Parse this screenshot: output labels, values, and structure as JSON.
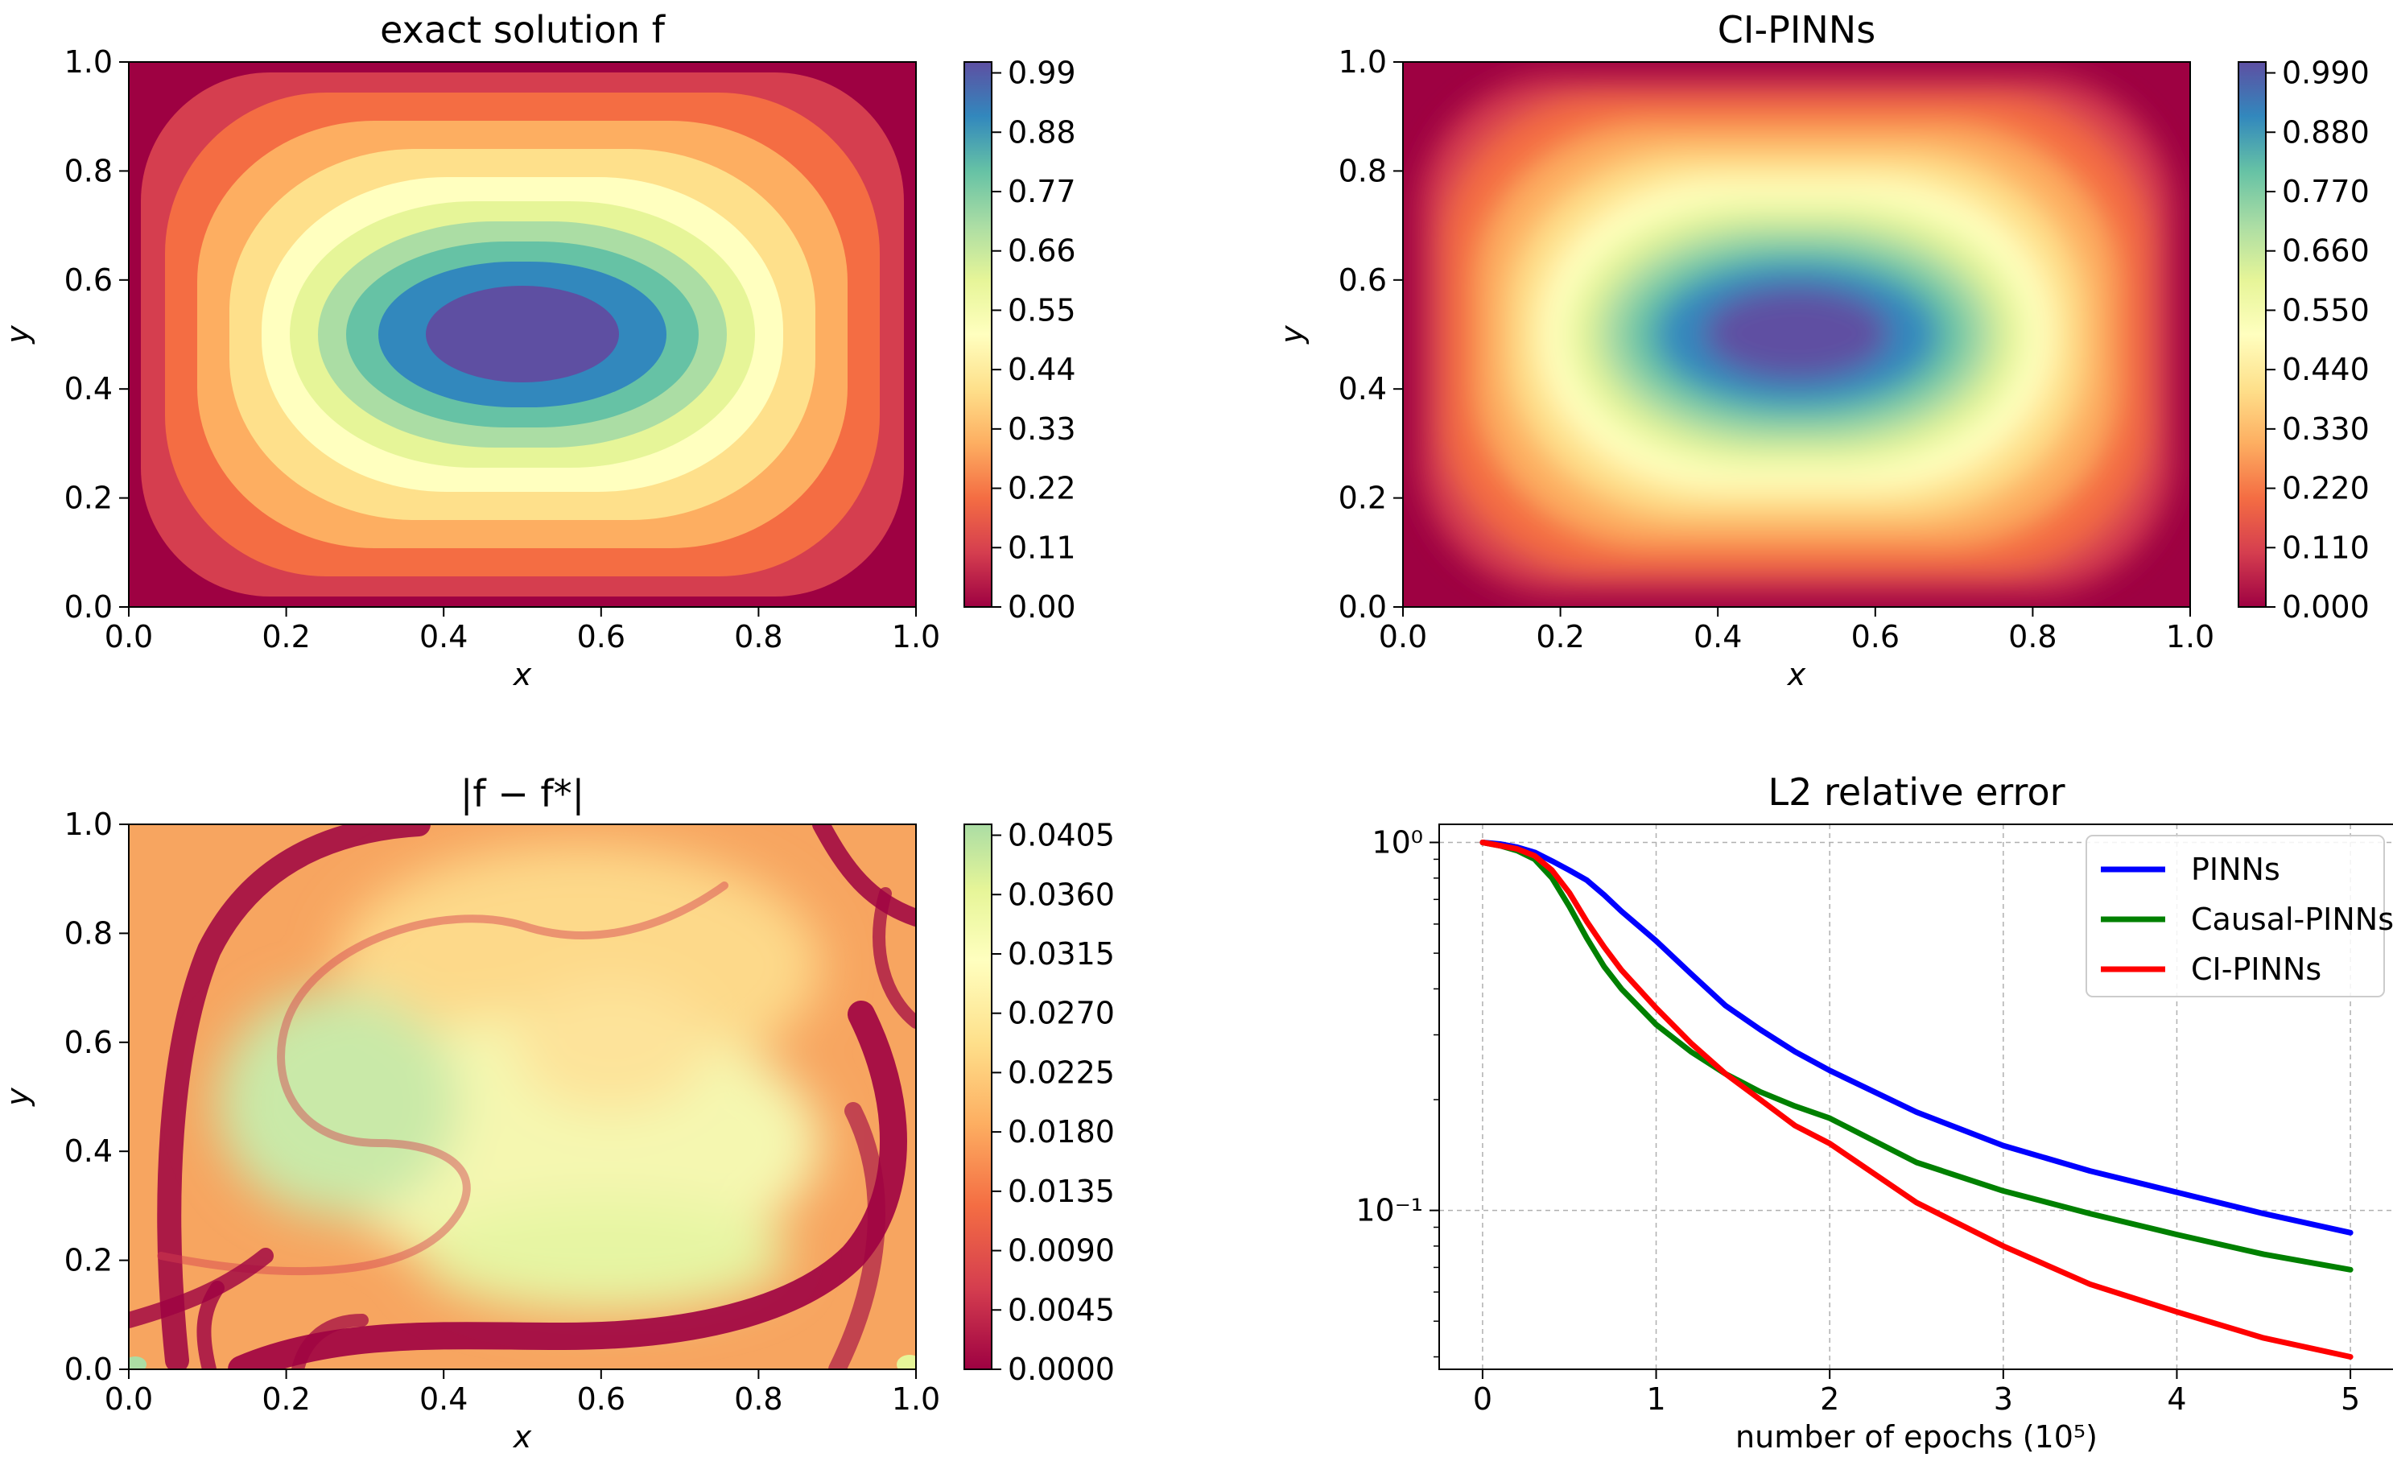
{
  "chart_data": [
    {
      "type": "heatmap",
      "title": "exact solution f",
      "xlabel": "x",
      "ylabel": "y",
      "xlim": [
        0,
        1
      ],
      "ylim": [
        0,
        1
      ],
      "xticks": [
        "0.0",
        "0.2",
        "0.4",
        "0.6",
        "0.8",
        "1.0"
      ],
      "yticks": [
        "0.0",
        "0.2",
        "0.4",
        "0.6",
        "0.8",
        "1.0"
      ],
      "colormap": "Spectral",
      "colorbar_range": [
        0,
        0.99
      ],
      "colorbar_ticks": [
        "0.00",
        "0.11",
        "0.22",
        "0.33",
        "0.44",
        "0.55",
        "0.66",
        "0.77",
        "0.88",
        "0.99"
      ],
      "max_location": [
        0.5,
        0.5
      ],
      "contour_levels": true
    },
    {
      "type": "heatmap",
      "title": "CI-PINNs",
      "xlabel": "x",
      "ylabel": "y",
      "xlim": [
        0,
        1
      ],
      "ylim": [
        0,
        1
      ],
      "xticks": [
        "0.0",
        "0.2",
        "0.4",
        "0.6",
        "0.8",
        "1.0"
      ],
      "yticks": [
        "0.0",
        "0.2",
        "0.4",
        "0.6",
        "0.8",
        "1.0"
      ],
      "colormap": "Spectral",
      "colorbar_range": [
        0,
        0.99
      ],
      "colorbar_ticks": [
        "0.000",
        "0.110",
        "0.220",
        "0.330",
        "0.440",
        "0.550",
        "0.660",
        "0.770",
        "0.880",
        "0.990"
      ],
      "max_location": [
        0.5,
        0.5
      ],
      "contour_levels": false
    },
    {
      "type": "heatmap",
      "title": "|f − f*|",
      "xlabel": "x",
      "ylabel": "y",
      "xlim": [
        0,
        1
      ],
      "ylim": [
        0,
        1
      ],
      "xticks": [
        "0.0",
        "0.2",
        "0.4",
        "0.6",
        "0.8",
        "1.0"
      ],
      "yticks": [
        "0.0",
        "0.2",
        "0.4",
        "0.6",
        "0.8",
        "1.0"
      ],
      "colormap": "Spectral",
      "colorbar_range": [
        0,
        0.0405
      ],
      "colorbar_ticks": [
        "0.0000",
        "0.0045",
        "0.0090",
        "0.0135",
        "0.0180",
        "0.0225",
        "0.0270",
        "0.0315",
        "0.0360",
        "0.0405"
      ],
      "contour_levels": false
    },
    {
      "type": "line",
      "title": "L2 relative error",
      "xlabel": "number of epochs (10⁵)",
      "ylabel": "",
      "xlim": [
        -0.25,
        5.25
      ],
      "ylim": [
        0.037,
        1.12
      ],
      "yscale": "log",
      "xticks": [
        "0",
        "1",
        "2",
        "3",
        "4",
        "5"
      ],
      "ytick_values": [
        1,
        0.1
      ],
      "ytick_labels": [
        "10⁰",
        "10⁻¹"
      ],
      "grid": true,
      "legend_position": "top-right",
      "series": [
        {
          "name": "PINNs",
          "color": "#0000ff",
          "x": [
            0,
            0.1,
            0.2,
            0.3,
            0.4,
            0.5,
            0.6,
            0.7,
            0.8,
            1.0,
            1.2,
            1.4,
            1.6,
            1.8,
            2.0,
            2.5,
            3.0,
            3.5,
            4.0,
            4.5,
            5.0
          ],
          "y": [
            1.0,
            0.99,
            0.97,
            0.94,
            0.89,
            0.84,
            0.79,
            0.72,
            0.65,
            0.54,
            0.44,
            0.36,
            0.31,
            0.27,
            0.24,
            0.185,
            0.15,
            0.128,
            0.112,
            0.098,
            0.087
          ]
        },
        {
          "name": "Causal-PINNs",
          "color": "#008000",
          "x": [
            0,
            0.1,
            0.2,
            0.3,
            0.4,
            0.5,
            0.6,
            0.7,
            0.8,
            1.0,
            1.2,
            1.4,
            1.6,
            1.8,
            2.0,
            2.5,
            3.0,
            3.5,
            4.0,
            4.5,
            5.0
          ],
          "y": [
            1.0,
            0.98,
            0.95,
            0.9,
            0.8,
            0.67,
            0.55,
            0.46,
            0.4,
            0.32,
            0.27,
            0.235,
            0.21,
            0.192,
            0.178,
            0.135,
            0.113,
            0.098,
            0.086,
            0.076,
            0.069
          ]
        },
        {
          "name": "CI-PINNs",
          "color": "#ff0000",
          "x": [
            0,
            0.1,
            0.2,
            0.3,
            0.4,
            0.5,
            0.6,
            0.7,
            0.8,
            1.0,
            1.2,
            1.4,
            1.6,
            1.8,
            2.0,
            2.5,
            3.0,
            3.5,
            4.0,
            4.5,
            5.0
          ],
          "y": [
            1.0,
            0.98,
            0.96,
            0.92,
            0.84,
            0.73,
            0.61,
            0.52,
            0.45,
            0.355,
            0.285,
            0.235,
            0.2,
            0.17,
            0.152,
            0.105,
            0.08,
            0.063,
            0.053,
            0.045,
            0.04
          ]
        }
      ]
    }
  ]
}
